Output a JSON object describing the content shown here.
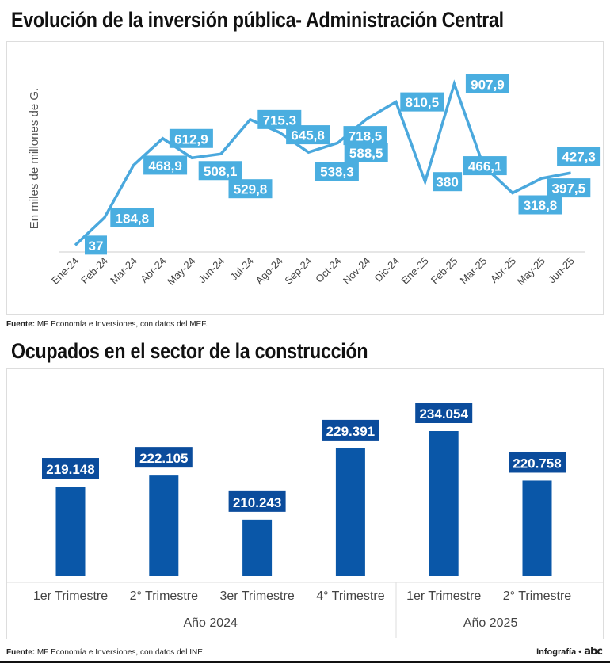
{
  "chart_data": [
    {
      "type": "line",
      "title": "Evolución de la inversión pública- Administración Central",
      "ylabel": "En miles de millones de G.",
      "categories": [
        "Ene-24",
        "Feb-24",
        "Mar-24",
        "Abr-24",
        "May-24",
        "Jun-24",
        "Jul-24",
        "Ago-24",
        "Sep-24",
        "Oct-24",
        "Nov-24",
        "Dic-24",
        "Ene-25",
        "Feb-25",
        "Mar-25",
        "Abr-25",
        "May-25",
        "Jun-25"
      ],
      "values": [
        37,
        184.8,
        468.9,
        612.9,
        508.1,
        529.8,
        715.3,
        645.8,
        538.3,
        588.5,
        718.5,
        810.5,
        380,
        907.9,
        466.1,
        318.8,
        397.5,
        427.3
      ],
      "labels": [
        "37",
        "184,8",
        "468,9",
        "612,9",
        "508,1",
        "529,8",
        "715,3",
        "645,8",
        "538,3",
        "588,5",
        "718,5",
        "810,5",
        "380",
        "907,9",
        "466,1",
        "318,8",
        "397,5",
        "427,3"
      ],
      "ylim": [
        0,
        950
      ],
      "grid": false,
      "colors": {
        "line": "#4aa8dd",
        "label_bg": "#4aaee0"
      },
      "source_label": "Fuente:",
      "source": "MF Economía e Inversiones, con datos del MEF."
    },
    {
      "type": "bar",
      "title": "Ocupados en el sector de la construcción",
      "categories": [
        "1er Trimestre",
        "2° Trimestre",
        "3er Trimestre",
        "4° Trimestre",
        "1er Trimestre",
        "2° Trimestre"
      ],
      "groups": [
        {
          "label": "Año 2024",
          "count": 4
        },
        {
          "label": "Año 2025",
          "count": 2
        }
      ],
      "values": [
        219148,
        222105,
        210243,
        229391,
        234054,
        220758
      ],
      "labels": [
        "219.148",
        "222.105",
        "210.243",
        "229.391",
        "234.054",
        "220.758"
      ],
      "ylim": [
        195100,
        240000
      ],
      "grid": false,
      "colors": {
        "bar": "#0a57a8",
        "label_bg": "#0b4c9c"
      },
      "source_label": "Fuente:",
      "source": "MF Economía e Inversiones, con datos del INE."
    }
  ],
  "footer": {
    "credit": "Infografía •",
    "logo": "abc"
  }
}
